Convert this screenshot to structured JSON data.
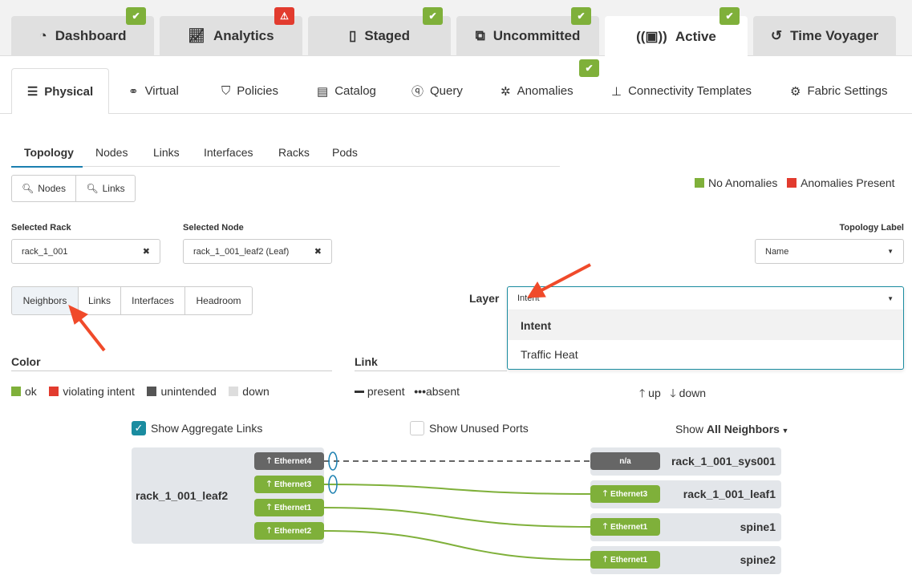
{
  "top_tabs": [
    {
      "label": "Dashboard",
      "icon": "dashboard-gauge-icon",
      "badge": "ok"
    },
    {
      "label": "Analytics",
      "icon": "line-chart-icon",
      "badge": "warning"
    },
    {
      "label": "Staged",
      "icon": "staged-document-icon",
      "badge": "ok"
    },
    {
      "label": "Uncommitted",
      "icon": "uncommitted-icon",
      "badge": "ok"
    },
    {
      "label": "Active",
      "icon": "active-broadcast-icon",
      "badge": "ok",
      "selected": true
    },
    {
      "label": "Time Voyager",
      "icon": "history-icon"
    }
  ],
  "nav": [
    {
      "label": "Physical",
      "icon": "server-icon",
      "selected": true
    },
    {
      "label": "Virtual",
      "icon": "network-icon"
    },
    {
      "label": "Policies",
      "icon": "shield-icon"
    },
    {
      "label": "Catalog",
      "icon": "catalog-icon"
    },
    {
      "label": "Query",
      "icon": "query-icon"
    },
    {
      "label": "Anomalies",
      "icon": "anomalies-icon",
      "badge": "ok"
    },
    {
      "label": "Connectivity Templates",
      "icon": "hierarchy-icon"
    },
    {
      "label": "Fabric Settings",
      "icon": "fabric-settings-icon"
    }
  ],
  "sub_tabs": [
    "Topology",
    "Nodes",
    "Links",
    "Interfaces",
    "Racks",
    "Pods"
  ],
  "search": {
    "nodes": "Nodes",
    "links": "Links"
  },
  "legend_top": {
    "ok": "No Anomalies",
    "bad": "Anomalies Present"
  },
  "selected_rack": {
    "label": "Selected Rack",
    "value": "rack_1_001"
  },
  "selected_node": {
    "label": "Selected Node",
    "value": "rack_1_001_leaf2 (Leaf)"
  },
  "topology_label": {
    "label": "Topology Label",
    "value": "Name"
  },
  "view_buttons": [
    "Neighbors",
    "Links",
    "Interfaces",
    "Headroom"
  ],
  "layer": {
    "label": "Layer",
    "value": "Intent",
    "options": [
      "Intent",
      "Traffic Heat"
    ]
  },
  "color_legend": {
    "title": "Color",
    "items": [
      "ok",
      "violating intent",
      "unintended",
      "down"
    ],
    "colors": [
      "#7fb03a",
      "#e23b2e",
      "#555555",
      "#dddddd"
    ]
  },
  "link_legend": {
    "title": "Link",
    "present": "present",
    "absent": "absent",
    "up": "up",
    "down": "down"
  },
  "options": {
    "aggregate": "Show Aggregate Links",
    "unused": "Show Unused Ports",
    "show_prefix": "Show",
    "show_value": "All Neighbors"
  },
  "diagram": {
    "local": "rack_1_001_leaf2",
    "local_ports": [
      {
        "name": "Ethernet4",
        "status": "unintended"
      },
      {
        "name": "Ethernet3",
        "status": "ok"
      },
      {
        "name": "Ethernet1",
        "status": "ok"
      },
      {
        "name": "Ethernet2",
        "status": "ok"
      }
    ],
    "neighbors": [
      {
        "name": "rack_1_001_sys001",
        "port": "n/a",
        "status": "unintended"
      },
      {
        "name": "rack_1_001_leaf1",
        "port": "Ethernet3",
        "status": "ok"
      },
      {
        "name": "spine1",
        "port": "Ethernet1",
        "status": "ok"
      },
      {
        "name": "spine2",
        "port": "Ethernet1",
        "status": "ok"
      }
    ]
  }
}
